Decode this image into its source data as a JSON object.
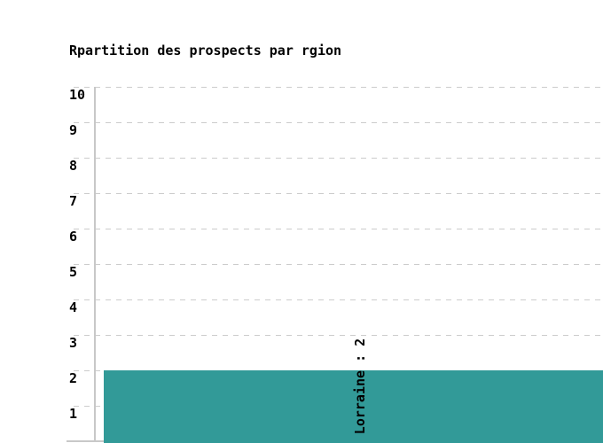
{
  "title": "Rpartition des prospects par rgion",
  "colors": {
    "bar": "#329a98",
    "grid": "#cccccc",
    "axis": "#c8c8c8",
    "text": "#000000",
    "background": "#ffffff"
  },
  "chart_data": {
    "type": "bar",
    "title": "Rpartition des prospects par rgion",
    "categories": [
      "Lorraine"
    ],
    "series": [
      {
        "name": "prospects",
        "values": [
          2
        ]
      }
    ],
    "bar_label": "Lorraine : 2",
    "xlabel": "",
    "ylabel": "",
    "ylim": [
      0,
      10
    ],
    "yticks": [
      1,
      2,
      3,
      4,
      5,
      6,
      7,
      8,
      9,
      10
    ],
    "grid": "horizontal-dashed",
    "legend_position": "none",
    "bar_label_orientation": "vertical"
  }
}
